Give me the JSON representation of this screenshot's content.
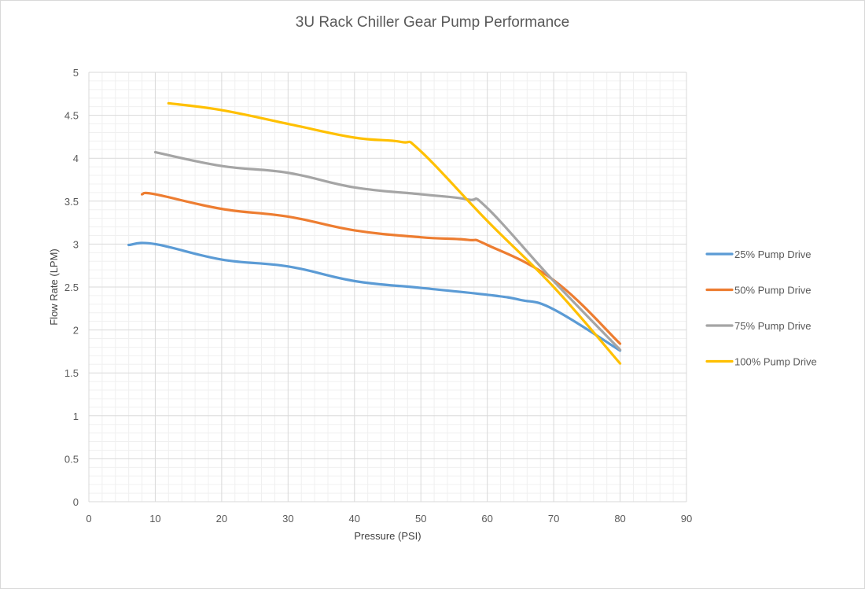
{
  "chart_data": {
    "type": "line",
    "title": "3U Rack Chiller Gear Pump Performance",
    "xlabel": "Pressure (PSI)",
    "ylabel": "Flow Rate (LPM)",
    "xlim": [
      0,
      90
    ],
    "ylim": [
      0,
      5
    ],
    "x_ticks": [
      "0",
      "10",
      "20",
      "30",
      "40",
      "50",
      "60",
      "70",
      "80",
      "90"
    ],
    "y_ticks": [
      "0",
      "0.5",
      "1",
      "1.5",
      "2",
      "2.5",
      "3",
      "3.5",
      "4",
      "4.5",
      "5"
    ],
    "grid": "major and minor",
    "legend_position": "right",
    "series": [
      {
        "name": "25% Pump Drive",
        "color": "#5b9bd5",
        "points": [
          [
            6,
            2.99
          ],
          [
            10,
            3.0
          ],
          [
            20,
            2.82
          ],
          [
            30,
            2.74
          ],
          [
            40,
            2.57
          ],
          [
            50,
            2.49
          ],
          [
            60,
            2.41
          ],
          [
            65,
            2.35
          ],
          [
            70,
            2.24
          ],
          [
            80,
            1.76
          ]
        ]
      },
      {
        "name": "50% Pump Drive",
        "color": "#ed7d31",
        "points": [
          [
            8,
            3.58
          ],
          [
            10,
            3.58
          ],
          [
            20,
            3.41
          ],
          [
            30,
            3.32
          ],
          [
            40,
            3.16
          ],
          [
            50,
            3.08
          ],
          [
            57,
            3.05
          ],
          [
            60,
            2.99
          ],
          [
            70,
            2.58
          ],
          [
            80,
            1.84
          ]
        ]
      },
      {
        "name": "75% Pump Drive",
        "color": "#a5a5a5",
        "points": [
          [
            10,
            4.07
          ],
          [
            20,
            3.91
          ],
          [
            30,
            3.83
          ],
          [
            40,
            3.66
          ],
          [
            50,
            3.58
          ],
          [
            57,
            3.52
          ],
          [
            60,
            3.42
          ],
          [
            70,
            2.57
          ],
          [
            80,
            1.77
          ]
        ]
      },
      {
        "name": "100% Pump Drive",
        "color": "#ffc000",
        "points": [
          [
            12,
            4.64
          ],
          [
            20,
            4.56
          ],
          [
            30,
            4.4
          ],
          [
            40,
            4.24
          ],
          [
            47,
            4.19
          ],
          [
            50,
            4.08
          ],
          [
            60,
            3.27
          ],
          [
            70,
            2.5
          ],
          [
            80,
            1.61
          ]
        ]
      }
    ]
  }
}
